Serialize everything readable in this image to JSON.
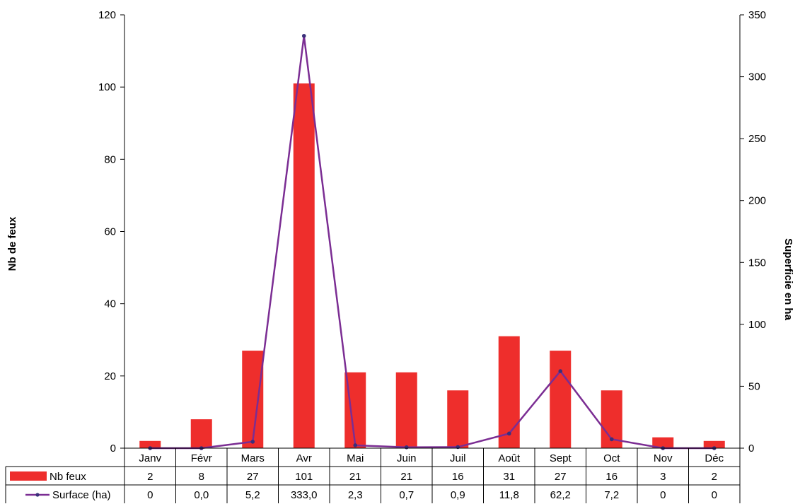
{
  "chart_data": {
    "type": "bar",
    "title": "",
    "categories": [
      "Janv",
      "Févr",
      "Mars",
      "Avr",
      "Mai",
      "Juin",
      "Juil",
      "Août",
      "Sept",
      "Oct",
      "Nov",
      "Déc"
    ],
    "series": [
      {
        "name": "Nb feux",
        "type": "bar",
        "axis": "left",
        "color": "#ee2e2c",
        "values": [
          2,
          8,
          27,
          101,
          21,
          21,
          16,
          31,
          27,
          16,
          3,
          2
        ],
        "table_values": [
          "2",
          "8",
          "27",
          "101",
          "21",
          "21",
          "16",
          "31",
          "27",
          "16",
          "3",
          "2"
        ]
      },
      {
        "name": "Surface (ha)",
        "type": "line",
        "axis": "right",
        "color": "#7b2d93",
        "values": [
          0,
          0,
          5.2,
          333,
          2.3,
          0.7,
          0.9,
          11.8,
          62.2,
          7.2,
          0,
          0
        ],
        "table_values": [
          "0",
          "0,0",
          "5,2",
          "333,0",
          "2,3",
          "0,7",
          "0,9",
          "11,8",
          "62,2",
          "7,2",
          "0",
          "0"
        ]
      }
    ],
    "ylabel": "Nb de feux",
    "y2label": "Superficie en ha",
    "ylim": [
      0,
      120
    ],
    "y2lim": [
      0,
      350
    ],
    "yticks": [
      0,
      20,
      40,
      60,
      80,
      100,
      120
    ],
    "y2ticks": [
      0,
      50,
      100,
      150,
      200,
      250,
      300,
      350
    ],
    "grid": false,
    "legend": "data-table"
  }
}
